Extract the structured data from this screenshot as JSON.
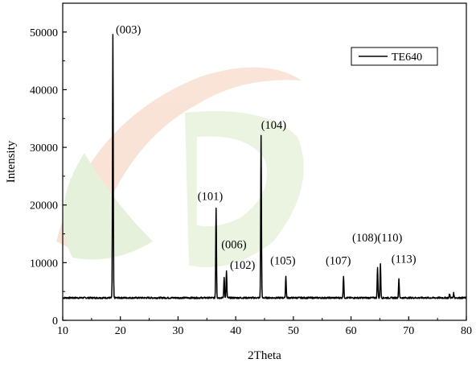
{
  "chart_data": {
    "type": "line",
    "title": "",
    "xlabel": "2Theta",
    "ylabel": "Intensity",
    "xlim": [
      10,
      80
    ],
    "ylim": [
      0,
      55000
    ],
    "xticks": [
      10,
      20,
      30,
      40,
      50,
      60,
      70,
      80
    ],
    "yticks": [
      0,
      10000,
      20000,
      30000,
      40000,
      50000
    ],
    "grid": false,
    "legend_position": "top-right",
    "baseline": 3900,
    "series": [
      {
        "name": "TE640",
        "color": "#000000",
        "peaks": [
          {
            "x": 18.7,
            "y": 49500
          },
          {
            "x": 36.6,
            "y": 19500
          },
          {
            "x": 38.0,
            "y": 7500
          },
          {
            "x": 38.4,
            "y": 8500
          },
          {
            "x": 44.4,
            "y": 32000
          },
          {
            "x": 48.7,
            "y": 7700
          },
          {
            "x": 58.7,
            "y": 7700
          },
          {
            "x": 64.6,
            "y": 9300
          },
          {
            "x": 65.1,
            "y": 9900
          },
          {
            "x": 68.3,
            "y": 7200
          },
          {
            "x": 77.1,
            "y": 4600
          },
          {
            "x": 77.8,
            "y": 4700
          }
        ]
      }
    ],
    "annotations": [
      {
        "text": "(003)",
        "x": 19.2,
        "y": 49800
      },
      {
        "text": "(101)",
        "x": 33.4,
        "y": 20900
      },
      {
        "text": "(006)",
        "x": 37.5,
        "y": 12500
      },
      {
        "text": "(102)",
        "x": 39.0,
        "y": 8900
      },
      {
        "text": "(104)",
        "x": 44.4,
        "y": 33200
      },
      {
        "text": "(105)",
        "x": 46.0,
        "y": 9700
      },
      {
        "text": "(107)",
        "x": 55.6,
        "y": 9700
      },
      {
        "text": "(108)(110)",
        "x": 60.2,
        "y": 13700
      },
      {
        "text": "(113)",
        "x": 67.0,
        "y": 10000
      }
    ]
  }
}
